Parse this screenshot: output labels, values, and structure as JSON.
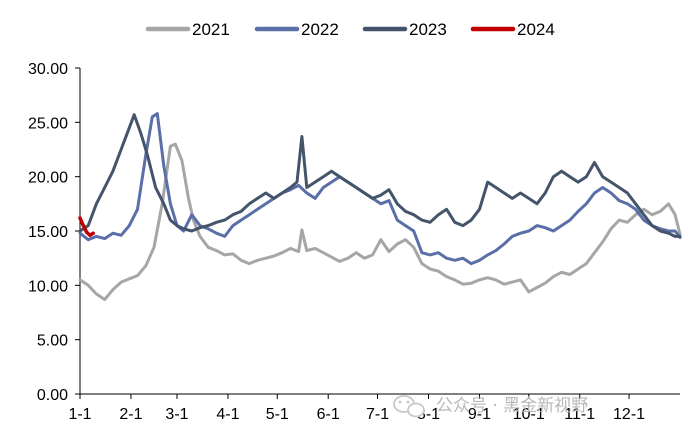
{
  "chart_data": {
    "type": "line",
    "title": "",
    "xlabel": "",
    "ylabel": "",
    "ylim": [
      0,
      30
    ],
    "yticks": [
      "0.00",
      "5.00",
      "10.00",
      "15.00",
      "20.00",
      "25.00",
      "30.00"
    ],
    "xticks": [
      "1-1",
      "2-1",
      "3-1",
      "4-1",
      "5-1",
      "6-1",
      "7-1",
      "8-1",
      "9-1",
      "10-1",
      "11-1",
      "12-1"
    ],
    "x_unit": "day of year",
    "legend_position": "top",
    "series": [
      {
        "name": "2021",
        "color": "#a6a6a6",
        "points": [
          [
            1,
            10.5
          ],
          [
            6,
            10.0
          ],
          [
            11,
            9.2
          ],
          [
            16,
            8.7
          ],
          [
            21,
            9.6
          ],
          [
            26,
            10.3
          ],
          [
            31,
            10.6
          ],
          [
            36,
            10.9
          ],
          [
            41,
            11.8
          ],
          [
            46,
            13.5
          ],
          [
            51,
            17.5
          ],
          [
            56,
            22.8
          ],
          [
            59,
            23.0
          ],
          [
            63,
            21.5
          ],
          [
            67,
            18.0
          ],
          [
            70,
            16.0
          ],
          [
            74,
            14.5
          ],
          [
            79,
            13.5
          ],
          [
            84,
            13.2
          ],
          [
            89,
            12.8
          ],
          [
            94,
            12.9
          ],
          [
            99,
            12.3
          ],
          [
            104,
            12.0
          ],
          [
            109,
            12.3
          ],
          [
            114,
            12.5
          ],
          [
            119,
            12.7
          ],
          [
            124,
            13.0
          ],
          [
            129,
            13.4
          ],
          [
            134,
            13.1
          ],
          [
            136,
            15.1
          ],
          [
            139,
            13.2
          ],
          [
            144,
            13.4
          ],
          [
            149,
            13.0
          ],
          [
            154,
            12.6
          ],
          [
            159,
            12.2
          ],
          [
            164,
            12.5
          ],
          [
            169,
            13.0
          ],
          [
            174,
            12.5
          ],
          [
            179,
            12.8
          ],
          [
            184,
            14.2
          ],
          [
            189,
            13.1
          ],
          [
            194,
            13.8
          ],
          [
            199,
            14.2
          ],
          [
            204,
            13.5
          ],
          [
            209,
            12.0
          ],
          [
            214,
            11.5
          ],
          [
            219,
            11.3
          ],
          [
            224,
            10.8
          ],
          [
            229,
            10.5
          ],
          [
            234,
            10.1
          ],
          [
            239,
            10.2
          ],
          [
            244,
            10.5
          ],
          [
            249,
            10.7
          ],
          [
            254,
            10.5
          ],
          [
            259,
            10.1
          ],
          [
            264,
            10.3
          ],
          [
            269,
            10.5
          ],
          [
            274,
            9.4
          ],
          [
            279,
            9.8
          ],
          [
            284,
            10.2
          ],
          [
            289,
            10.8
          ],
          [
            294,
            11.2
          ],
          [
            299,
            11.0
          ],
          [
            304,
            11.5
          ],
          [
            309,
            12.0
          ],
          [
            314,
            13.0
          ],
          [
            319,
            14.0
          ],
          [
            324,
            15.2
          ],
          [
            329,
            16.0
          ],
          [
            334,
            15.8
          ],
          [
            339,
            16.5
          ],
          [
            344,
            17.0
          ],
          [
            349,
            16.5
          ],
          [
            354,
            16.8
          ],
          [
            359,
            17.5
          ],
          [
            363,
            16.5
          ],
          [
            366,
            14.7
          ]
        ]
      },
      {
        "name": "2022",
        "color": "#5a6ea8",
        "points": [
          [
            1,
            14.8
          ],
          [
            6,
            14.2
          ],
          [
            11,
            14.5
          ],
          [
            16,
            14.3
          ],
          [
            21,
            14.8
          ],
          [
            26,
            14.6
          ],
          [
            31,
            15.5
          ],
          [
            36,
            17.0
          ],
          [
            41,
            22.0
          ],
          [
            45,
            25.5
          ],
          [
            48,
            25.8
          ],
          [
            52,
            21.0
          ],
          [
            56,
            17.5
          ],
          [
            60,
            15.5
          ],
          [
            64,
            15.0
          ],
          [
            69,
            16.5
          ],
          [
            74,
            15.5
          ],
          [
            79,
            15.2
          ],
          [
            84,
            14.8
          ],
          [
            89,
            14.5
          ],
          [
            94,
            15.5
          ],
          [
            99,
            16.0
          ],
          [
            104,
            16.5
          ],
          [
            109,
            17.0
          ],
          [
            114,
            17.5
          ],
          [
            119,
            18.0
          ],
          [
            124,
            18.5
          ],
          [
            129,
            18.8
          ],
          [
            134,
            19.2
          ],
          [
            139,
            18.5
          ],
          [
            144,
            18.0
          ],
          [
            149,
            19.0
          ],
          [
            154,
            19.5
          ],
          [
            159,
            20.0
          ],
          [
            164,
            19.5
          ],
          [
            169,
            19.0
          ],
          [
            174,
            18.5
          ],
          [
            179,
            18.0
          ],
          [
            184,
            17.5
          ],
          [
            189,
            17.8
          ],
          [
            194,
            16.0
          ],
          [
            199,
            15.5
          ],
          [
            204,
            15.0
          ],
          [
            209,
            13.0
          ],
          [
            214,
            12.8
          ],
          [
            219,
            13.0
          ],
          [
            224,
            12.5
          ],
          [
            229,
            12.3
          ],
          [
            234,
            12.5
          ],
          [
            239,
            12.0
          ],
          [
            244,
            12.3
          ],
          [
            249,
            12.8
          ],
          [
            254,
            13.2
          ],
          [
            259,
            13.8
          ],
          [
            264,
            14.5
          ],
          [
            269,
            14.8
          ],
          [
            274,
            15.0
          ],
          [
            279,
            15.5
          ],
          [
            284,
            15.3
          ],
          [
            289,
            15.0
          ],
          [
            294,
            15.5
          ],
          [
            299,
            16.0
          ],
          [
            304,
            16.8
          ],
          [
            309,
            17.5
          ],
          [
            314,
            18.5
          ],
          [
            319,
            19.0
          ],
          [
            324,
            18.5
          ],
          [
            329,
            17.8
          ],
          [
            334,
            17.5
          ],
          [
            339,
            17.0
          ],
          [
            344,
            16.0
          ],
          [
            349,
            15.5
          ],
          [
            354,
            15.2
          ],
          [
            359,
            15.0
          ],
          [
            363,
            15.0
          ],
          [
            366,
            14.4
          ]
        ]
      },
      {
        "name": "2023",
        "color": "#44546a",
        "points": [
          [
            1,
            15.0
          ],
          [
            6,
            15.5
          ],
          [
            11,
            17.5
          ],
          [
            16,
            19.0
          ],
          [
            21,
            20.5
          ],
          [
            26,
            22.5
          ],
          [
            31,
            24.5
          ],
          [
            34,
            25.7
          ],
          [
            38,
            24.0
          ],
          [
            42,
            22.0
          ],
          [
            47,
            19.0
          ],
          [
            52,
            17.5
          ],
          [
            56,
            16.0
          ],
          [
            60,
            15.5
          ],
          [
            64,
            15.2
          ],
          [
            69,
            15.0
          ],
          [
            74,
            15.3
          ],
          [
            79,
            15.5
          ],
          [
            84,
            15.8
          ],
          [
            89,
            16.0
          ],
          [
            94,
            16.5
          ],
          [
            99,
            16.8
          ],
          [
            104,
            17.5
          ],
          [
            109,
            18.0
          ],
          [
            114,
            18.5
          ],
          [
            119,
            18.0
          ],
          [
            124,
            18.5
          ],
          [
            129,
            19.0
          ],
          [
            133,
            19.5
          ],
          [
            136,
            23.7
          ],
          [
            139,
            19.0
          ],
          [
            144,
            19.5
          ],
          [
            149,
            20.0
          ],
          [
            154,
            20.5
          ],
          [
            159,
            20.0
          ],
          [
            164,
            19.5
          ],
          [
            169,
            19.0
          ],
          [
            174,
            18.5
          ],
          [
            179,
            18.0
          ],
          [
            184,
            18.3
          ],
          [
            189,
            18.8
          ],
          [
            194,
            17.5
          ],
          [
            199,
            16.8
          ],
          [
            204,
            16.5
          ],
          [
            209,
            16.0
          ],
          [
            214,
            15.8
          ],
          [
            219,
            16.5
          ],
          [
            224,
            17.0
          ],
          [
            229,
            15.8
          ],
          [
            234,
            15.5
          ],
          [
            239,
            16.0
          ],
          [
            244,
            17.0
          ],
          [
            249,
            19.5
          ],
          [
            254,
            19.0
          ],
          [
            259,
            18.5
          ],
          [
            264,
            18.0
          ],
          [
            269,
            18.5
          ],
          [
            274,
            18.0
          ],
          [
            279,
            17.5
          ],
          [
            284,
            18.5
          ],
          [
            289,
            20.0
          ],
          [
            294,
            20.5
          ],
          [
            299,
            20.0
          ],
          [
            304,
            19.5
          ],
          [
            309,
            20.0
          ],
          [
            314,
            21.3
          ],
          [
            319,
            20.0
          ],
          [
            324,
            19.5
          ],
          [
            329,
            19.0
          ],
          [
            334,
            18.5
          ],
          [
            339,
            17.5
          ],
          [
            344,
            16.5
          ],
          [
            349,
            15.5
          ],
          [
            354,
            15.0
          ],
          [
            359,
            14.8
          ],
          [
            363,
            14.5
          ],
          [
            366,
            14.5
          ]
        ]
      },
      {
        "name": "2024",
        "color": "#c00000",
        "points": [
          [
            1,
            16.2
          ],
          [
            3,
            15.5
          ],
          [
            5,
            14.9
          ],
          [
            7,
            14.6
          ],
          [
            9,
            14.8
          ]
        ]
      }
    ]
  },
  "watermark": "公众号 · 黑金新视野"
}
